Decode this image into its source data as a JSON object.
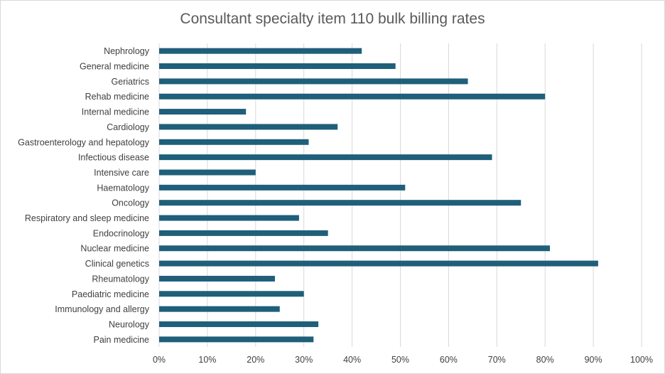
{
  "chart_data": {
    "type": "bar",
    "orientation": "horizontal",
    "title": "Consultant specialty item 110 bulk billing rates",
    "xlabel": "",
    "ylabel": "",
    "xlim": [
      0,
      100
    ],
    "x_ticks": [
      "0%",
      "10%",
      "20%",
      "30%",
      "40%",
      "50%",
      "60%",
      "70%",
      "80%",
      "90%",
      "100%"
    ],
    "grid": true,
    "legend": "none",
    "bar_color": "#1f5f7a",
    "categories": [
      "Nephrology",
      "General medicine",
      "Geriatrics",
      "Rehab medicine",
      "Internal medicine",
      "Cardiology",
      "Gastroenterology and hepatology",
      "Infectious disease",
      "Intensive care",
      "Haematology",
      "Oncology",
      "Respiratory and sleep medicine",
      "Endocrinology",
      "Nuclear medicine",
      "Clinical genetics",
      "Rheumatology",
      "Paediatric medicine",
      "Immunology and allergy",
      "Neurology",
      "Pain medicine"
    ],
    "values": [
      42,
      49,
      64,
      80,
      18,
      37,
      31,
      69,
      20,
      51,
      75,
      29,
      35,
      81,
      91,
      24,
      30,
      25,
      33,
      32
    ]
  }
}
